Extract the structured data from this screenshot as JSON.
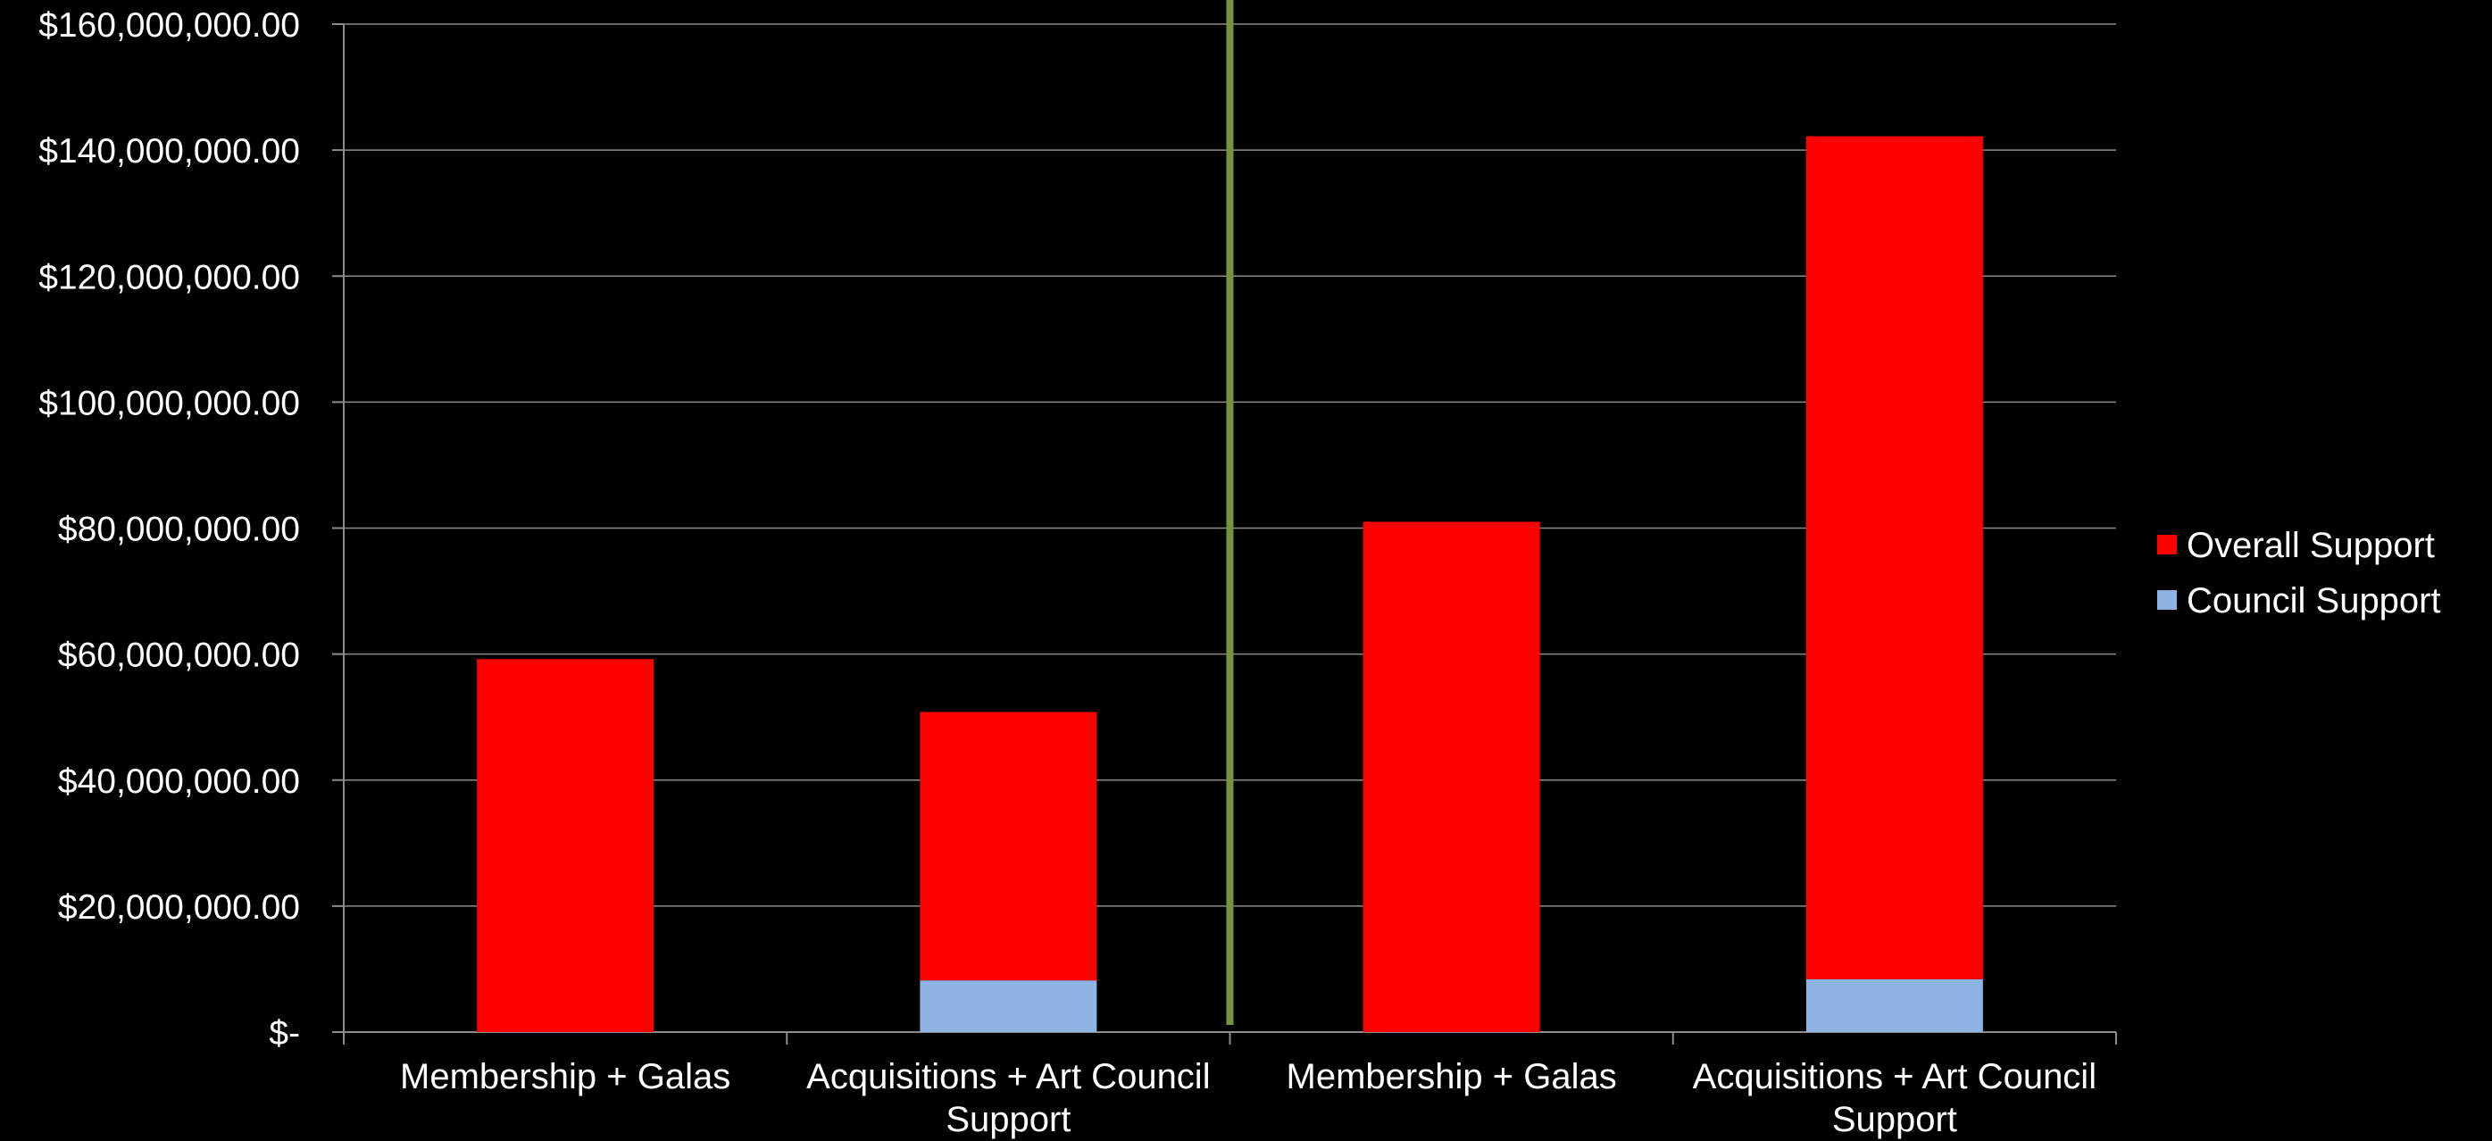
{
  "chart_data": {
    "type": "bar",
    "stacked": true,
    "categories": [
      [
        "Membership + Galas"
      ],
      [
        "Acquisitions + Art Council",
        "Support"
      ],
      [
        "Membership + Galas"
      ],
      [
        "Acquisitions + Art Council",
        "Support"
      ]
    ],
    "series": [
      {
        "name": "Council Support",
        "color": "#8DB4E2",
        "values": [
          0,
          8200000,
          0,
          8400000
        ]
      },
      {
        "name": "Overall Support",
        "color": "#FF0000",
        "values": [
          59200000,
          42600000,
          81000000,
          133800000
        ]
      }
    ],
    "ylim": [
      0,
      160000000
    ],
    "y_ticks": [
      {
        "value": 0,
        "label": "$-"
      },
      {
        "value": 20000000,
        "label": "$20,000,000.00"
      },
      {
        "value": 40000000,
        "label": "$40,000,000.00"
      },
      {
        "value": 60000000,
        "label": "$60,000,000.00"
      },
      {
        "value": 80000000,
        "label": "$80,000,000.00"
      },
      {
        "value": 100000000,
        "label": "$100,000,000.00"
      },
      {
        "value": 120000000,
        "label": "$120,000,000.00"
      },
      {
        "value": 140000000,
        "label": "$140,000,000.00"
      },
      {
        "value": 160000000,
        "label": "$160,000,000.00"
      }
    ],
    "grid": true,
    "legend": {
      "position": "right",
      "entries": [
        {
          "name": "Overall Support",
          "color": "#FF0000"
        },
        {
          "name": "Council Support",
          "color": "#8DB4E2"
        }
      ]
    },
    "divider": {
      "after_category_index": 1,
      "color": "#77933C"
    },
    "title": "",
    "xlabel": "",
    "ylabel": ""
  }
}
